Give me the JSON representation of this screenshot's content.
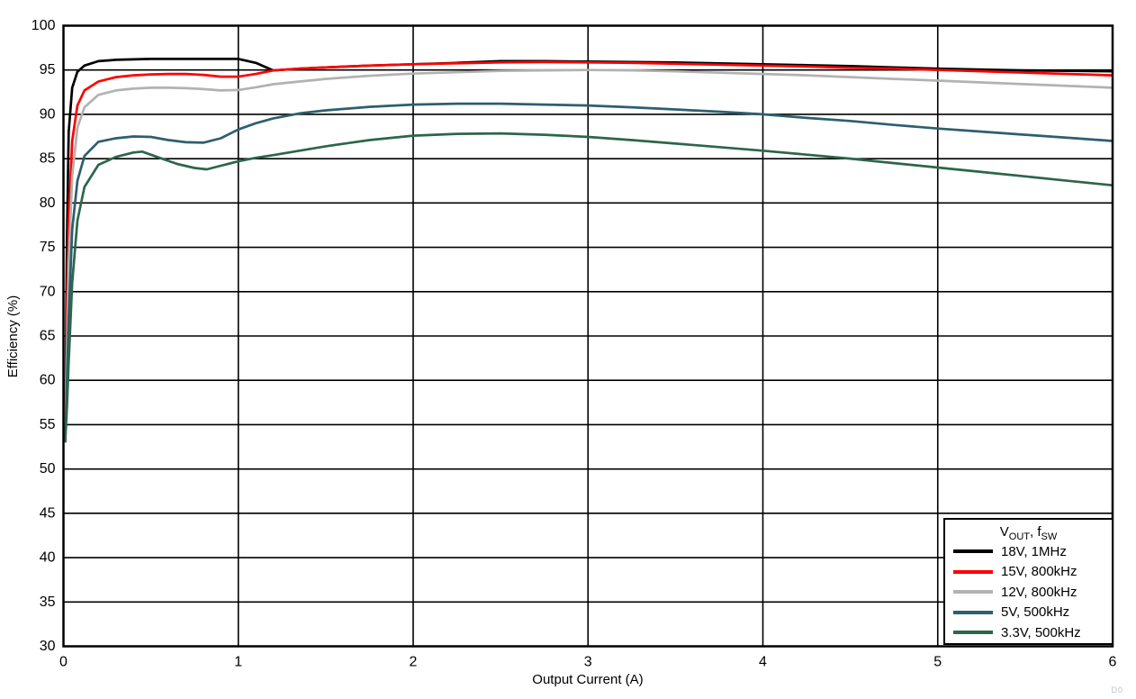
{
  "watermark": "D0",
  "chart_data": {
    "type": "line",
    "title": "",
    "xlabel": "Output Current (A)",
    "ylabel": "Efficiency (%)",
    "xlim": [
      0,
      6
    ],
    "ylim": [
      30,
      100
    ],
    "x_ticks": [
      0,
      1,
      2,
      3,
      4,
      5,
      6
    ],
    "y_ticks": [
      30,
      35,
      40,
      45,
      50,
      55,
      60,
      65,
      70,
      75,
      80,
      85,
      90,
      95,
      100
    ],
    "grid": true,
    "legend": {
      "position": "bottom-right",
      "title_parts": [
        {
          "text": "V"
        },
        {
          "text": "OUT",
          "sub": true
        },
        {
          "text": ", f"
        },
        {
          "text": "SW",
          "sub": true
        }
      ]
    },
    "series": [
      {
        "name": "18V, 1MHz",
        "color": "#000000",
        "points": [
          [
            0.01,
            53
          ],
          [
            0.02,
            76
          ],
          [
            0.03,
            88
          ],
          [
            0.05,
            93
          ],
          [
            0.08,
            94.8
          ],
          [
            0.12,
            95.5
          ],
          [
            0.2,
            96.0
          ],
          [
            0.3,
            96.15
          ],
          [
            0.4,
            96.2
          ],
          [
            0.5,
            96.25
          ],
          [
            0.6,
            96.25
          ],
          [
            0.7,
            96.25
          ],
          [
            0.8,
            96.25
          ],
          [
            0.9,
            96.25
          ],
          [
            1.0,
            96.25
          ],
          [
            1.1,
            95.8
          ],
          [
            1.2,
            94.95
          ],
          [
            1.35,
            95.15
          ],
          [
            1.5,
            95.3
          ],
          [
            1.75,
            95.5
          ],
          [
            2.0,
            95.65
          ],
          [
            2.25,
            95.8
          ],
          [
            2.5,
            96.0
          ],
          [
            2.75,
            96.0
          ],
          [
            3.0,
            95.95
          ],
          [
            3.25,
            95.9
          ],
          [
            3.5,
            95.85
          ],
          [
            3.75,
            95.75
          ],
          [
            4.0,
            95.65
          ],
          [
            4.25,
            95.55
          ],
          [
            4.5,
            95.45
          ],
          [
            4.75,
            95.3
          ],
          [
            5.0,
            95.15
          ],
          [
            5.25,
            95.05
          ],
          [
            5.5,
            94.95
          ],
          [
            5.75,
            94.9
          ],
          [
            6.0,
            94.85
          ]
        ]
      },
      {
        "name": "15V, 800kHz",
        "color": "#ff0000",
        "points": [
          [
            0.01,
            53
          ],
          [
            0.02,
            68
          ],
          [
            0.03,
            78
          ],
          [
            0.05,
            87
          ],
          [
            0.08,
            91
          ],
          [
            0.12,
            92.7
          ],
          [
            0.2,
            93.7
          ],
          [
            0.3,
            94.2
          ],
          [
            0.4,
            94.4
          ],
          [
            0.5,
            94.5
          ],
          [
            0.6,
            94.55
          ],
          [
            0.7,
            94.55
          ],
          [
            0.8,
            94.45
          ],
          [
            0.9,
            94.25
          ],
          [
            1.0,
            94.25
          ],
          [
            1.1,
            94.55
          ],
          [
            1.2,
            94.95
          ],
          [
            1.35,
            95.15
          ],
          [
            1.5,
            95.3
          ],
          [
            1.75,
            95.5
          ],
          [
            2.0,
            95.65
          ],
          [
            2.25,
            95.75
          ],
          [
            2.5,
            95.85
          ],
          [
            2.75,
            95.9
          ],
          [
            3.0,
            95.85
          ],
          [
            3.25,
            95.8
          ],
          [
            3.5,
            95.7
          ],
          [
            3.75,
            95.6
          ],
          [
            4.0,
            95.5
          ],
          [
            4.25,
            95.4
          ],
          [
            4.5,
            95.25
          ],
          [
            4.75,
            95.15
          ],
          [
            5.0,
            95.0
          ],
          [
            5.25,
            94.85
          ],
          [
            5.5,
            94.7
          ],
          [
            5.75,
            94.55
          ],
          [
            6.0,
            94.4
          ]
        ]
      },
      {
        "name": "12V, 800kHz",
        "color": "#b2b2b2",
        "points": [
          [
            0.01,
            53
          ],
          [
            0.02,
            64
          ],
          [
            0.03,
            73
          ],
          [
            0.05,
            83
          ],
          [
            0.08,
            88.5
          ],
          [
            0.12,
            90.8
          ],
          [
            0.2,
            92.2
          ],
          [
            0.3,
            92.7
          ],
          [
            0.4,
            92.9
          ],
          [
            0.5,
            93.0
          ],
          [
            0.6,
            93.0
          ],
          [
            0.7,
            92.95
          ],
          [
            0.8,
            92.85
          ],
          [
            0.9,
            92.7
          ],
          [
            1.0,
            92.75
          ],
          [
            1.1,
            93.05
          ],
          [
            1.2,
            93.4
          ],
          [
            1.35,
            93.7
          ],
          [
            1.5,
            94.0
          ],
          [
            1.75,
            94.35
          ],
          [
            2.0,
            94.6
          ],
          [
            2.25,
            94.75
          ],
          [
            2.5,
            94.9
          ],
          [
            2.75,
            94.95
          ],
          [
            3.0,
            95.0
          ],
          [
            3.25,
            94.95
          ],
          [
            3.5,
            94.85
          ],
          [
            3.75,
            94.7
          ],
          [
            4.0,
            94.55
          ],
          [
            4.25,
            94.4
          ],
          [
            4.5,
            94.2
          ],
          [
            4.75,
            94.0
          ],
          [
            5.0,
            93.8
          ],
          [
            5.25,
            93.6
          ],
          [
            5.5,
            93.4
          ],
          [
            5.75,
            93.2
          ],
          [
            6.0,
            93.0
          ]
        ]
      },
      {
        "name": "5V, 500kHz",
        "color": "#2d5f6e",
        "points": [
          [
            0.01,
            53
          ],
          [
            0.02,
            60
          ],
          [
            0.03,
            67
          ],
          [
            0.05,
            77
          ],
          [
            0.08,
            82.5
          ],
          [
            0.12,
            85.3
          ],
          [
            0.2,
            86.9
          ],
          [
            0.3,
            87.3
          ],
          [
            0.4,
            87.5
          ],
          [
            0.5,
            87.45
          ],
          [
            0.6,
            87.1
          ],
          [
            0.7,
            86.85
          ],
          [
            0.8,
            86.8
          ],
          [
            0.9,
            87.3
          ],
          [
            1.0,
            88.3
          ],
          [
            1.1,
            89.0
          ],
          [
            1.2,
            89.55
          ],
          [
            1.35,
            90.1
          ],
          [
            1.5,
            90.45
          ],
          [
            1.75,
            90.85
          ],
          [
            2.0,
            91.1
          ],
          [
            2.25,
            91.2
          ],
          [
            2.5,
            91.2
          ],
          [
            2.75,
            91.1
          ],
          [
            3.0,
            91.0
          ],
          [
            3.25,
            90.8
          ],
          [
            3.5,
            90.55
          ],
          [
            3.75,
            90.3
          ],
          [
            4.0,
            90.0
          ],
          [
            4.25,
            89.6
          ],
          [
            4.5,
            89.25
          ],
          [
            4.75,
            88.8
          ],
          [
            5.0,
            88.4
          ],
          [
            5.25,
            88.05
          ],
          [
            5.5,
            87.7
          ],
          [
            5.75,
            87.35
          ],
          [
            6.0,
            87.0
          ]
        ]
      },
      {
        "name": "3.3V, 500kHz",
        "color": "#2c664c",
        "points": [
          [
            0.01,
            53
          ],
          [
            0.02,
            57
          ],
          [
            0.03,
            62
          ],
          [
            0.05,
            71
          ],
          [
            0.08,
            78
          ],
          [
            0.12,
            81.8
          ],
          [
            0.2,
            84.3
          ],
          [
            0.3,
            85.2
          ],
          [
            0.4,
            85.7
          ],
          [
            0.45,
            85.8
          ],
          [
            0.55,
            85.1
          ],
          [
            0.65,
            84.4
          ],
          [
            0.75,
            83.95
          ],
          [
            0.82,
            83.8
          ],
          [
            0.9,
            84.2
          ],
          [
            1.0,
            84.7
          ],
          [
            1.1,
            85.1
          ],
          [
            1.2,
            85.4
          ],
          [
            1.35,
            85.9
          ],
          [
            1.5,
            86.4
          ],
          [
            1.75,
            87.1
          ],
          [
            2.0,
            87.6
          ],
          [
            2.25,
            87.8
          ],
          [
            2.5,
            87.85
          ],
          [
            2.75,
            87.7
          ],
          [
            3.0,
            87.45
          ],
          [
            3.25,
            87.1
          ],
          [
            3.5,
            86.7
          ],
          [
            3.75,
            86.3
          ],
          [
            4.0,
            85.9
          ],
          [
            4.25,
            85.45
          ],
          [
            4.5,
            85.0
          ],
          [
            4.75,
            84.5
          ],
          [
            5.0,
            84.0
          ],
          [
            5.25,
            83.5
          ],
          [
            5.5,
            83.0
          ],
          [
            5.75,
            82.5
          ],
          [
            6.0,
            82.0
          ]
        ]
      }
    ]
  }
}
